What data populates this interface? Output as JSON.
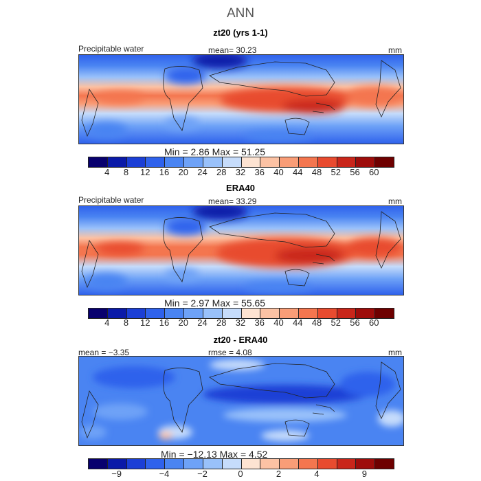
{
  "title": "ANN",
  "panels": [
    {
      "id": "model",
      "title": "zt20 (yrs 1-1)",
      "field_label": "Precipitable water",
      "stat_center": "mean=  30.23",
      "units": "mm",
      "minmax": "Min =    2.86  Max =   51.25",
      "colorbar_ticks": [
        "4",
        "8",
        "12",
        "16",
        "20",
        "24",
        "28",
        "32",
        "36",
        "40",
        "44",
        "48",
        "52",
        "56",
        "60"
      ]
    },
    {
      "id": "obs",
      "title": "ERA40",
      "field_label": "Precipitable water",
      "stat_center": "mean=  33.29",
      "units": "mm",
      "minmax": "Min =    2.97  Max =   55.65",
      "colorbar_ticks": [
        "4",
        "8",
        "12",
        "16",
        "20",
        "24",
        "28",
        "32",
        "36",
        "40",
        "44",
        "48",
        "52",
        "56",
        "60"
      ]
    },
    {
      "id": "diff",
      "title": "zt20 - ERA40",
      "stat_left": "mean =  −3.35",
      "stat_center": "rmse =   4.08",
      "units": "mm",
      "minmax": "Min = −12.13  Max =    4.52",
      "colorbar_ticks": [
        "−9",
        "−4",
        "−2",
        "0",
        "2",
        "4",
        "9"
      ]
    }
  ],
  "colors": {
    "sequential": [
      "#08006e",
      "#0a1aa8",
      "#1b3fd6",
      "#2f62ec",
      "#4a84f2",
      "#6ea2f7",
      "#99c1fa",
      "#c6dcfb",
      "#fde3d2",
      "#fcc2a4",
      "#f99d77",
      "#f4764f",
      "#e84b2f",
      "#c9261a",
      "#9e0d0b",
      "#6e0000"
    ],
    "diverging": [
      "#08006e",
      "#0a1aa8",
      "#1b3fd6",
      "#2f62ec",
      "#4a84f2",
      "#6ea2f7",
      "#99c1fa",
      "#c6dcfb",
      "#fde3d2",
      "#fcc2a4",
      "#f99d77",
      "#f4764f",
      "#e84b2f",
      "#c9261a",
      "#9e0d0b",
      "#6e0000"
    ]
  }
}
